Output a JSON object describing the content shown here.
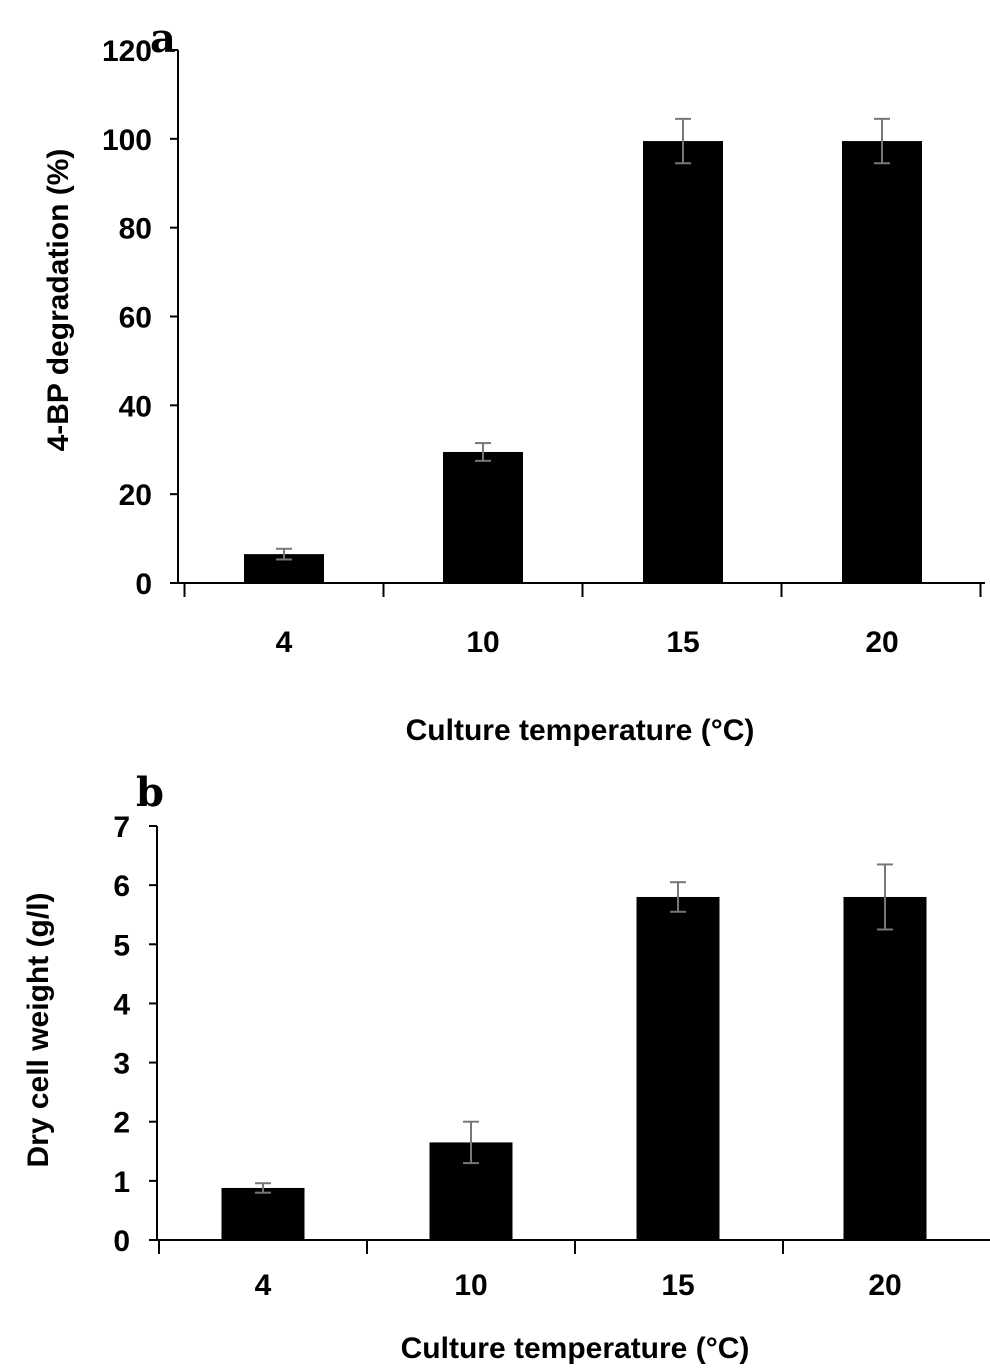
{
  "chart_data": [
    {
      "panel_label": "a",
      "type": "bar",
      "categories": [
        "4",
        "10",
        "15",
        "20"
      ],
      "values": [
        6.5,
        29.5,
        99.5,
        99.5
      ],
      "errors": [
        1.2,
        2.0,
        5.0,
        5.0
      ],
      "ylim": [
        0,
        120
      ],
      "yticks": [
        "0",
        "20",
        "40",
        "60",
        "80",
        "100",
        "120"
      ],
      "xlabel": "Culture temperature (°C)",
      "ylabel": "4-BP degradation (%)",
      "bar_color": "#000000",
      "grid": false
    },
    {
      "panel_label": "b",
      "type": "bar",
      "categories": [
        "4",
        "10",
        "15",
        "20"
      ],
      "values": [
        0.88,
        1.65,
        5.8,
        5.8
      ],
      "errors": [
        0.08,
        0.35,
        0.25,
        0.55
      ],
      "ylim": [
        0,
        7
      ],
      "yticks": [
        "0",
        "1",
        "2",
        "3",
        "4",
        "5",
        "6",
        "7"
      ],
      "xlabel": "Culture temperature (°C)",
      "ylabel": "Dry cell weight (g/l)",
      "bar_color": "#000000",
      "grid": false
    }
  ]
}
